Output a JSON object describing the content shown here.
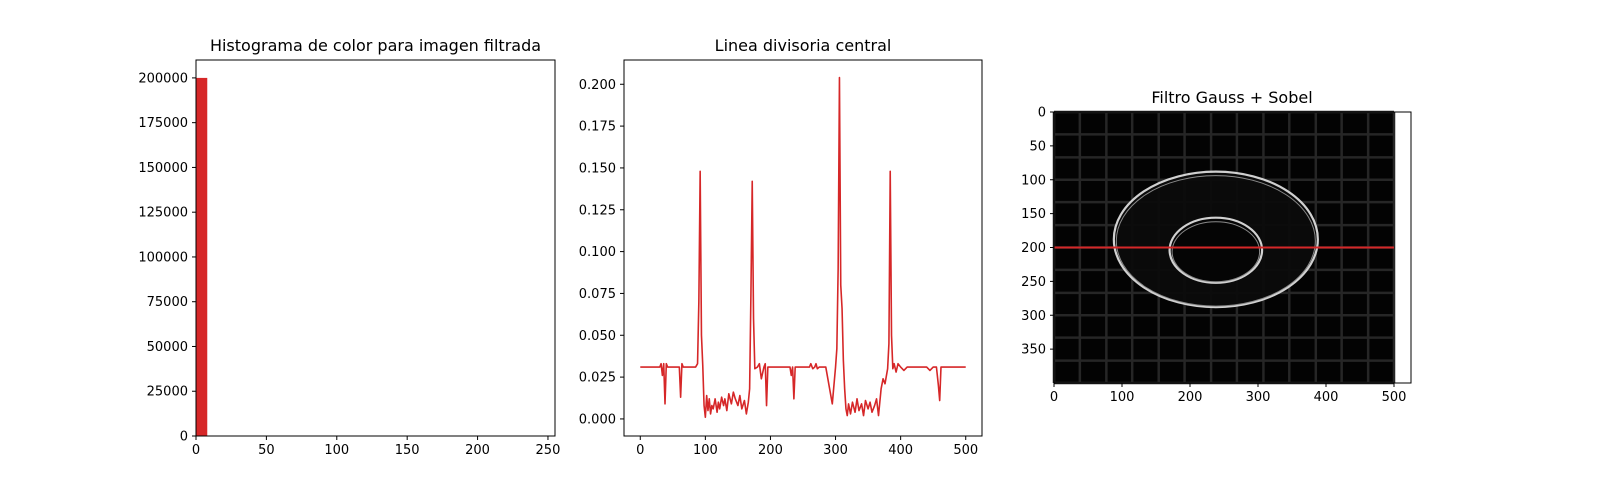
{
  "colors": {
    "accent": "#d62728",
    "grid": "#262626",
    "image_bg": "#030303",
    "ring": "#dcdcdc"
  },
  "chart_data": [
    {
      "type": "bar",
      "title": "Histograma de color para imagen filtrada",
      "xlabel": "",
      "ylabel": "",
      "xlim": [
        0,
        255
      ],
      "ylim": [
        0,
        210000
      ],
      "xticks": [
        0,
        50,
        100,
        150,
        200,
        250
      ],
      "yticks": [
        0,
        25000,
        50000,
        75000,
        100000,
        125000,
        150000,
        175000,
        200000
      ],
      "bins": [
        {
          "x0": 0,
          "x1": 8,
          "count": 200000
        }
      ]
    },
    {
      "type": "line",
      "title": "Linea divisoria central",
      "xlabel": "",
      "ylabel": "",
      "xlim": [
        -25,
        525
      ],
      "ylim": [
        -0.0102,
        0.2145
      ],
      "xticks": [
        0,
        100,
        200,
        300,
        400,
        500
      ],
      "yticks": [
        0.0,
        0.025,
        0.05,
        0.075,
        0.1,
        0.125,
        0.15,
        0.175,
        0.2
      ],
      "ytick_labels": [
        "0.000",
        "0.025",
        "0.050",
        "0.075",
        "0.100",
        "0.125",
        "0.150",
        "0.175",
        "0.200"
      ],
      "x": [
        0,
        30,
        32,
        34,
        36,
        38,
        40,
        42,
        60,
        62,
        64,
        66,
        68,
        85,
        88,
        90,
        92,
        94,
        96,
        98,
        100,
        102,
        104,
        106,
        108,
        110,
        112,
        115,
        118,
        120,
        122,
        125,
        128,
        130,
        133,
        136,
        140,
        143,
        146,
        150,
        153,
        156,
        160,
        163,
        166,
        168,
        170,
        172,
        174,
        176,
        180,
        183,
        186,
        190,
        192,
        194,
        196,
        200,
        230,
        232,
        234,
        236,
        238,
        260,
        262,
        265,
        268,
        270,
        272,
        275,
        285,
        295,
        300,
        302,
        304,
        306,
        308,
        310,
        312,
        314,
        316,
        318,
        320,
        323,
        326,
        330,
        333,
        336,
        340,
        343,
        346,
        350,
        353,
        356,
        360,
        363,
        366,
        370,
        373,
        376,
        380,
        382,
        384,
        386,
        388,
        390,
        393,
        396,
        400,
        405,
        410,
        440,
        445,
        450,
        455,
        458,
        460,
        462,
        465,
        500
      ],
      "y": [
        0.031,
        0.031,
        0.033,
        0.026,
        0.033,
        0.009,
        0.033,
        0.031,
        0.031,
        0.013,
        0.033,
        0.031,
        0.031,
        0.031,
        0.033,
        0.07,
        0.148,
        0.05,
        0.032,
        0.008,
        0.001,
        0.014,
        0.005,
        0.012,
        0.003,
        0.008,
        0.006,
        0.012,
        0.004,
        0.01,
        0.006,
        0.013,
        0.008,
        0.012,
        0.005,
        0.015,
        0.009,
        0.016,
        0.012,
        0.008,
        0.014,
        0.006,
        0.011,
        0.003,
        0.01,
        0.018,
        0.075,
        0.142,
        0.06,
        0.03,
        0.031,
        0.033,
        0.024,
        0.031,
        0.033,
        0.008,
        0.031,
        0.031,
        0.031,
        0.026,
        0.031,
        0.012,
        0.031,
        0.031,
        0.033,
        0.03,
        0.031,
        0.033,
        0.03,
        0.031,
        0.031,
        0.009,
        0.031,
        0.042,
        0.09,
        0.204,
        0.08,
        0.066,
        0.035,
        0.018,
        0.006,
        0.002,
        0.009,
        0.003,
        0.01,
        0.004,
        0.012,
        0.005,
        0.009,
        0.002,
        0.011,
        0.006,
        0.01,
        0.004,
        0.008,
        0.012,
        0.002,
        0.018,
        0.024,
        0.021,
        0.03,
        0.045,
        0.148,
        0.05,
        0.03,
        0.033,
        0.028,
        0.033,
        0.031,
        0.029,
        0.031,
        0.031,
        0.029,
        0.031,
        0.031,
        0.02,
        0.011,
        0.031,
        0.031,
        0.031
      ]
    },
    {
      "type": "image",
      "title": "Filtro Gauss + Sobel",
      "xlabel": "",
      "ylabel": "",
      "xlim": [
        0,
        525
      ],
      "ylim": [
        400,
        0
      ],
      "xticks": [
        0,
        100,
        200,
        300,
        400,
        500
      ],
      "yticks": [
        0,
        50,
        100,
        150,
        200,
        250,
        300,
        350
      ],
      "image_extent": {
        "width": 500,
        "height": 400
      },
      "outer_ellipse": {
        "cx": 238,
        "cy": 188,
        "rx": 150,
        "ry": 100
      },
      "inner_ellipse": {
        "cx": 238,
        "cy": 204,
        "rx": 68,
        "ry": 48
      },
      "grid_lines_x": [
        0,
        38,
        77,
        115,
        154,
        192,
        231,
        269,
        308,
        346,
        385,
        423,
        462,
        500
      ],
      "grid_lines_y": [
        0,
        33,
        67,
        100,
        133,
        167,
        200,
        233,
        267,
        300,
        333,
        367,
        400
      ],
      "divider_y": 200
    }
  ]
}
